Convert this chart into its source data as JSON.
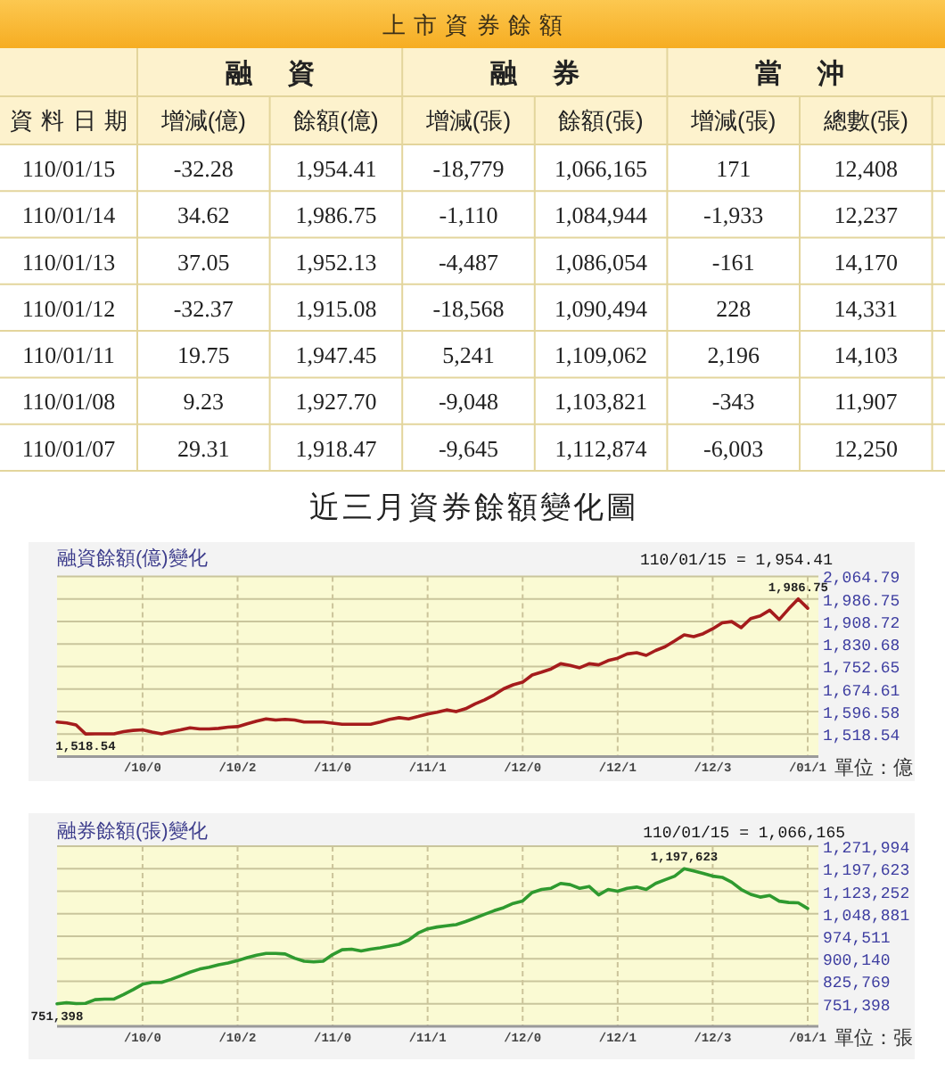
{
  "chart_data": [
    {
      "type": "heatmap",
      "title": "上市資券餘額",
      "ylabel": "資料日期",
      "annotations": [
        "融資",
        "融券",
        "當沖"
      ],
      "categories": [
        "增減(億)",
        "餘額(億)",
        "增減(張)",
        "餘額(張)",
        "增減(張)",
        "總數(張)"
      ],
      "y_categories": [
        "110/01/15",
        "110/01/14",
        "110/01/13",
        "110/01/12",
        "110/01/11",
        "110/01/08",
        "110/01/07"
      ],
      "cells": [
        [
          -32.28,
          1954.41,
          -18779,
          1066165,
          171,
          12408
        ],
        [
          34.62,
          1986.75,
          -1110,
          1084944,
          -1933,
          12237
        ],
        [
          37.05,
          1952.13,
          -4487,
          1086054,
          -161,
          14170
        ],
        [
          -32.37,
          1915.08,
          -18568,
          1090494,
          228,
          14331
        ],
        [
          19.75,
          1947.45,
          5241,
          1109062,
          2196,
          14103
        ],
        [
          9.23,
          1927.7,
          -9048,
          1103821,
          -343,
          11907
        ],
        [
          29.31,
          1918.47,
          -9645,
          1112874,
          -6003,
          12250
        ]
      ],
      "cell_labels": [
        [
          "-32.28",
          "1,954.41",
          "-18,779",
          "1,066,165",
          "171",
          "12,408"
        ],
        [
          "34.62",
          "1,986.75",
          "-1,110",
          "1,084,944",
          "-1,933",
          "12,237"
        ],
        [
          "37.05",
          "1,952.13",
          "-4,487",
          "1,086,054",
          "-161",
          "14,170"
        ],
        [
          "-32.37",
          "1,915.08",
          "-18,568",
          "1,090,494",
          "228",
          "14,331"
        ],
        [
          "19.75",
          "1,947.45",
          "5,241",
          "1,109,062",
          "2,196",
          "14,103"
        ],
        [
          "9.23",
          "1,927.70",
          "-9,048",
          "1,103,821",
          "-343",
          "11,907"
        ],
        [
          "29.31",
          "1,918.47",
          "-9,645",
          "1,112,874",
          "-6,003",
          "12,250"
        ]
      ]
    },
    {
      "type": "line",
      "title": "近三月資券餘額變化圖",
      "subtitle": "融資餘額(億)變化",
      "ylabel": "單位：億",
      "categories": [
        null,
        null,
        null,
        null,
        null,
        null,
        null,
        null,
        null,
        "/10/0",
        null,
        null,
        null,
        null,
        null,
        null,
        null,
        null,
        null,
        "/10/2",
        null,
        null,
        null,
        null,
        null,
        null,
        null,
        null,
        null,
        "/11/0",
        null,
        null,
        null,
        null,
        null,
        null,
        null,
        null,
        null,
        "/11/1",
        null,
        null,
        null,
        null,
        null,
        null,
        null,
        null,
        null,
        "/12/0",
        null,
        null,
        null,
        null,
        null,
        null,
        null,
        null,
        null,
        "/12/1",
        null,
        null,
        null,
        null,
        null,
        null,
        null,
        null,
        null,
        "/12/3",
        null,
        null,
        null,
        null,
        null,
        null,
        null,
        null,
        null,
        "/01/1"
      ],
      "series": [
        {
          "color": "#a51c1c",
          "values": [
            1560,
            1557,
            1550,
            1518.54,
            1519,
            1519,
            1519,
            1527,
            1531,
            1533,
            1525,
            1519,
            1527,
            1533,
            1540,
            1536,
            1536,
            1538,
            1542,
            1544,
            1554,
            1563,
            1571,
            1567,
            1569,
            1567,
            1560,
            1560,
            1560,
            1556,
            1552,
            1552,
            1552,
            1552,
            1560,
            1569,
            1575,
            1571,
            1579,
            1588,
            1594,
            1602,
            1596,
            1606,
            1623,
            1637,
            1654,
            1675,
            1689,
            1698,
            1723,
            1733,
            1744,
            1762,
            1756,
            1748,
            1762,
            1758,
            1773,
            1781,
            1796,
            1800,
            1791,
            1808,
            1821,
            1841,
            1862,
            1856,
            1866,
            1883,
            1904,
            1908,
            1887,
            1918.47,
            1927.7,
            1947.45,
            1915.08,
            1952.13,
            1986.75,
            1954.41
          ]
        }
      ],
      "ylim": [
        1440.5,
        2064.79
      ],
      "yticks": [
        {
          "value": 1518.54,
          "label": "1,518.54"
        },
        {
          "value": 1596.58,
          "label": "1,596.58"
        },
        {
          "value": 1674.61,
          "label": "1,674.61"
        },
        {
          "value": 1752.65,
          "label": "1,752.65"
        },
        {
          "value": 1830.68,
          "label": "1,830.68"
        },
        {
          "value": 1908.72,
          "label": "1,908.72"
        },
        {
          "value": 1986.75,
          "label": "1,986.75"
        },
        {
          "value": 2064.79,
          "label": "2,064.79"
        }
      ],
      "grid": true,
      "annotations": [
        "110/01/15 = 1,954.41",
        {
          "text": "1,518.54",
          "y": 1518.54
        },
        {
          "text": "1,986.75",
          "y": 1986.75
        }
      ]
    },
    {
      "type": "line",
      "title": "融券餘額(張)變化",
      "ylabel": "單位：張",
      "categories": [
        null,
        null,
        null,
        null,
        null,
        null,
        null,
        null,
        null,
        "/10/0",
        null,
        null,
        null,
        null,
        null,
        null,
        null,
        null,
        null,
        "/10/2",
        null,
        null,
        null,
        null,
        null,
        null,
        null,
        null,
        null,
        "/11/0",
        null,
        null,
        null,
        null,
        null,
        null,
        null,
        null,
        null,
        "/11/1",
        null,
        null,
        null,
        null,
        null,
        null,
        null,
        null,
        null,
        "/12/0",
        null,
        null,
        null,
        null,
        null,
        null,
        null,
        null,
        null,
        "/12/1",
        null,
        null,
        null,
        null,
        null,
        null,
        null,
        null,
        null,
        "/12/3",
        null,
        null,
        null,
        null,
        null,
        null,
        null,
        null,
        null,
        "/01/1"
      ],
      "series": [
        {
          "color": "#2f9a2f",
          "values": [
            751398,
            755000,
            752000,
            753000,
            765000,
            767000,
            767000,
            782000,
            798000,
            816000,
            822000,
            822000,
            832000,
            844000,
            856000,
            866000,
            872000,
            880000,
            886000,
            894000,
            904000,
            912000,
            918000,
            918000,
            916000,
            902000,
            892000,
            890000,
            892000,
            914000,
            930000,
            932000,
            926000,
            932000,
            936000,
            942000,
            948000,
            962000,
            985000,
            999000,
            1005000,
            1009000,
            1013000,
            1023000,
            1035000,
            1047000,
            1059000,
            1069000,
            1083000,
            1091000,
            1119000,
            1129000,
            1133000,
            1149000,
            1145000,
            1133000,
            1139000,
            1111000,
            1129000,
            1123000,
            1133000,
            1137000,
            1129000,
            1149000,
            1161000,
            1173000,
            1197623,
            1190000,
            1182000,
            1173000,
            1169000,
            1153000,
            1129000,
            1112874,
            1103821,
            1109062,
            1090494,
            1086054,
            1084944,
            1066165
          ]
        }
      ],
      "ylim": [
        677027,
        1271994
      ],
      "yticks": [
        {
          "value": 751398,
          "label": "751,398"
        },
        {
          "value": 825769,
          "label": "825,769"
        },
        {
          "value": 900140,
          "label": "900,140"
        },
        {
          "value": 974511,
          "label": "974,511"
        },
        {
          "value": 1048881,
          "label": "1,048,881"
        },
        {
          "value": 1123252,
          "label": "1,123,252"
        },
        {
          "value": 1197623,
          "label": "1,197,623"
        },
        {
          "value": 1271994,
          "label": "1,271,994"
        }
      ],
      "grid": true,
      "annotations": [
        "110/01/15 = 1,066,165",
        {
          "text": "751,398",
          "y": 751398
        },
        {
          "text": "1,197,623",
          "y": 1197623
        }
      ]
    }
  ]
}
